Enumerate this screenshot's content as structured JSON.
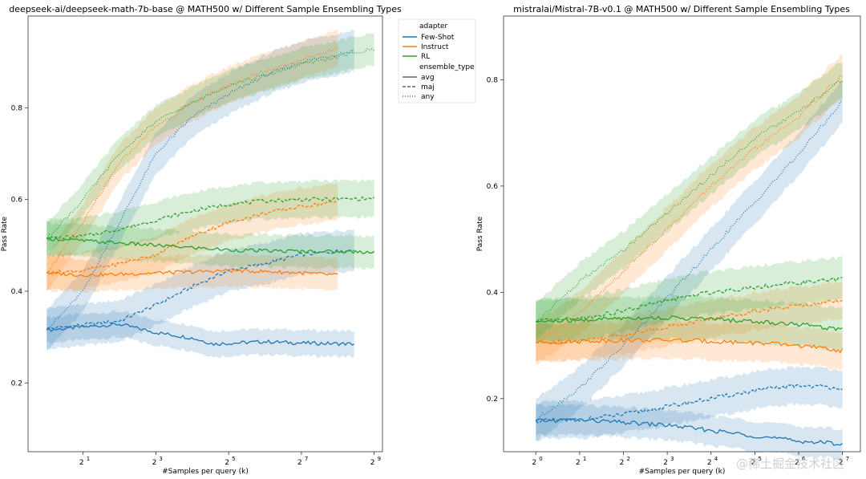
{
  "chart_data": [
    {
      "type": "line",
      "title": "deepseek-ai/deepseek-math-7b-base @ MATH500 w/ Different Sample Ensembling Types",
      "xlabel": "#Samples per query (k)",
      "ylabel": "Pass Rate",
      "xscale": "log2",
      "x_ticks": [
        {
          "value": 2,
          "base": "2",
          "exp": "1"
        },
        {
          "value": 8,
          "base": "2",
          "exp": "3"
        },
        {
          "value": 32,
          "base": "2",
          "exp": "5"
        },
        {
          "value": 128,
          "base": "2",
          "exp": "7"
        },
        {
          "value": 512,
          "base": "2",
          "exp": "9"
        }
      ],
      "y_ticks": [
        "0.2",
        "0.4",
        "0.6",
        "0.8"
      ],
      "xlim": [
        0.7,
        600
      ],
      "ylim": [
        0.05,
        1.0
      ],
      "grid": false,
      "series": [
        {
          "adapter": "Few-Shot",
          "ensemble_type": "avg",
          "x_start": 1,
          "x_end": 350,
          "points": [
            [
              1,
              0.315
            ],
            [
              2,
              0.322
            ],
            [
              4,
              0.328
            ],
            [
              8,
              0.31
            ],
            [
              16,
              0.298
            ],
            [
              24,
              0.285
            ],
            [
              64,
              0.29
            ],
            [
              128,
              0.287
            ],
            [
              350,
              0.285
            ]
          ],
          "band": 0.028
        },
        {
          "adapter": "Few-Shot",
          "ensemble_type": "maj",
          "x_start": 1,
          "x_end": 350,
          "points": [
            [
              1,
              0.318
            ],
            [
              4,
              0.335
            ],
            [
              8,
              0.37
            ],
            [
              16,
              0.41
            ],
            [
              32,
              0.445
            ],
            [
              64,
              0.46
            ],
            [
              128,
              0.48
            ],
            [
              350,
              0.49
            ]
          ],
          "band": 0.045
        },
        {
          "adapter": "Few-Shot",
          "ensemble_type": "any",
          "x_start": 1,
          "x_end": 350,
          "points": [
            [
              1,
              0.315
            ],
            [
              2,
              0.4
            ],
            [
              4,
              0.55
            ],
            [
              8,
              0.7
            ],
            [
              16,
              0.78
            ],
            [
              32,
              0.83
            ],
            [
              64,
              0.87
            ],
            [
              128,
              0.9
            ],
            [
              350,
              0.925
            ]
          ],
          "band": 0.045
        },
        {
          "adapter": "Instruct",
          "ensemble_type": "avg",
          "x_start": 1,
          "x_end": 256,
          "points": [
            [
              1,
              0.44
            ],
            [
              2,
              0.435
            ],
            [
              4,
              0.437
            ],
            [
              8,
              0.44
            ],
            [
              16,
              0.442
            ],
            [
              32,
              0.445
            ],
            [
              64,
              0.443
            ],
            [
              128,
              0.44
            ],
            [
              256,
              0.435
            ]
          ],
          "band": 0.035
        },
        {
          "adapter": "Instruct",
          "ensemble_type": "maj",
          "x_start": 1,
          "x_end": 256,
          "points": [
            [
              1,
              0.44
            ],
            [
              2,
              0.445
            ],
            [
              4,
              0.46
            ],
            [
              8,
              0.48
            ],
            [
              16,
              0.52
            ],
            [
              32,
              0.55
            ],
            [
              64,
              0.57
            ],
            [
              128,
              0.585
            ],
            [
              256,
              0.595
            ]
          ],
          "band": 0.04
        },
        {
          "adapter": "Instruct",
          "ensemble_type": "any",
          "x_start": 1,
          "x_end": 256,
          "points": [
            [
              1,
              0.44
            ],
            [
              2,
              0.55
            ],
            [
              4,
              0.68
            ],
            [
              8,
              0.76
            ],
            [
              16,
              0.81
            ],
            [
              32,
              0.85
            ],
            [
              64,
              0.88
            ],
            [
              128,
              0.905
            ],
            [
              256,
              0.93
            ]
          ],
          "band": 0.04
        },
        {
          "adapter": "RL",
          "ensemble_type": "avg",
          "x_start": 1,
          "x_end": 512,
          "points": [
            [
              1,
              0.515
            ],
            [
              2,
              0.51
            ],
            [
              4,
              0.505
            ],
            [
              8,
              0.5
            ],
            [
              16,
              0.495
            ],
            [
              32,
              0.49
            ],
            [
              64,
              0.488
            ],
            [
              128,
              0.487
            ],
            [
              512,
              0.486
            ]
          ],
          "band": 0.035
        },
        {
          "adapter": "RL",
          "ensemble_type": "maj",
          "x_start": 1,
          "x_end": 512,
          "points": [
            [
              1,
              0.515
            ],
            [
              2,
              0.52
            ],
            [
              4,
              0.535
            ],
            [
              8,
              0.555
            ],
            [
              16,
              0.575
            ],
            [
              32,
              0.59
            ],
            [
              64,
              0.597
            ],
            [
              128,
              0.6
            ],
            [
              512,
              0.602
            ]
          ],
          "band": 0.04
        },
        {
          "adapter": "RL",
          "ensemble_type": "any",
          "x_start": 1,
          "x_end": 512,
          "points": [
            [
              1,
              0.515
            ],
            [
              2,
              0.6
            ],
            [
              4,
              0.7
            ],
            [
              8,
              0.77
            ],
            [
              16,
              0.81
            ],
            [
              32,
              0.85
            ],
            [
              64,
              0.87
            ],
            [
              128,
              0.895
            ],
            [
              512,
              0.928
            ]
          ],
          "band": 0.035
        }
      ]
    },
    {
      "type": "line",
      "title": "mistralai/Mistral-7B-v0.1 @ MATH500 w/ Different Sample Ensembling Types",
      "xlabel": "#Samples per query (k)",
      "ylabel": "Pass Rate",
      "xscale": "log2",
      "x_ticks": [
        {
          "value": 1,
          "base": "2",
          "exp": "0"
        },
        {
          "value": 2,
          "base": "2",
          "exp": "1"
        },
        {
          "value": 4,
          "base": "2",
          "exp": "2"
        },
        {
          "value": 8,
          "base": "2",
          "exp": "3"
        },
        {
          "value": 16,
          "base": "2",
          "exp": "4"
        },
        {
          "value": 32,
          "base": "2",
          "exp": "5"
        },
        {
          "value": 64,
          "base": "2",
          "exp": "6"
        },
        {
          "value": 128,
          "base": "2",
          "exp": "7"
        }
      ],
      "y_ticks": [
        "0.2",
        "0.4",
        "0.6",
        "0.8"
      ],
      "xlim": [
        0.6,
        170
      ],
      "ylim": [
        0.1,
        0.92
      ],
      "grid": false,
      "series": [
        {
          "adapter": "Few-Shot",
          "ensemble_type": "avg",
          "x_start": 1,
          "x_end": 128,
          "points": [
            [
              1,
              0.158
            ],
            [
              2,
              0.16
            ],
            [
              4,
              0.155
            ],
            [
              8,
              0.15
            ],
            [
              16,
              0.14
            ],
            [
              32,
              0.13
            ],
            [
              64,
              0.12
            ],
            [
              128,
              0.115
            ]
          ],
          "band": 0.028
        },
        {
          "adapter": "Few-Shot",
          "ensemble_type": "maj",
          "x_start": 1,
          "x_end": 128,
          "points": [
            [
              1,
              0.158
            ],
            [
              2,
              0.16
            ],
            [
              4,
              0.17
            ],
            [
              8,
              0.185
            ],
            [
              16,
              0.2
            ],
            [
              32,
              0.215
            ],
            [
              64,
              0.225
            ],
            [
              128,
              0.22
            ]
          ],
          "band": 0.035
        },
        {
          "adapter": "Few-Shot",
          "ensemble_type": "any",
          "x_start": 1,
          "x_end": 128,
          "points": [
            [
              1,
              0.16
            ],
            [
              2,
              0.22
            ],
            [
              4,
              0.3
            ],
            [
              8,
              0.39
            ],
            [
              16,
              0.48
            ],
            [
              32,
              0.57
            ],
            [
              64,
              0.66
            ],
            [
              128,
              0.76
            ]
          ],
          "band": 0.04
        },
        {
          "adapter": "Instruct",
          "ensemble_type": "avg",
          "x_start": 1,
          "x_end": 128,
          "points": [
            [
              1,
              0.305
            ],
            [
              2,
              0.308
            ],
            [
              4,
              0.31
            ],
            [
              8,
              0.31
            ],
            [
              16,
              0.308
            ],
            [
              32,
              0.305
            ],
            [
              64,
              0.3
            ],
            [
              128,
              0.29
            ]
          ],
          "band": 0.035
        },
        {
          "adapter": "Instruct",
          "ensemble_type": "maj",
          "x_start": 1,
          "x_end": 128,
          "points": [
            [
              1,
              0.305
            ],
            [
              2,
              0.31
            ],
            [
              4,
              0.32
            ],
            [
              8,
              0.335
            ],
            [
              16,
              0.35
            ],
            [
              32,
              0.365
            ],
            [
              64,
              0.375
            ],
            [
              128,
              0.385
            ]
          ],
          "band": 0.035
        },
        {
          "adapter": "Instruct",
          "ensemble_type": "any",
          "x_start": 1,
          "x_end": 128,
          "points": [
            [
              1,
              0.305
            ],
            [
              2,
              0.36
            ],
            [
              4,
              0.44
            ],
            [
              8,
              0.52
            ],
            [
              16,
              0.6
            ],
            [
              32,
              0.67
            ],
            [
              64,
              0.73
            ],
            [
              128,
              0.81
            ]
          ],
          "band": 0.04
        },
        {
          "adapter": "RL",
          "ensemble_type": "avg",
          "x_start": 1,
          "x_end": 128,
          "points": [
            [
              1,
              0.345
            ],
            [
              2,
              0.347
            ],
            [
              4,
              0.352
            ],
            [
              8,
              0.352
            ],
            [
              16,
              0.35
            ],
            [
              32,
              0.345
            ],
            [
              64,
              0.34
            ],
            [
              128,
              0.33
            ]
          ],
          "band": 0.04
        },
        {
          "adapter": "RL",
          "ensemble_type": "maj",
          "x_start": 1,
          "x_end": 128,
          "points": [
            [
              1,
              0.345
            ],
            [
              2,
              0.35
            ],
            [
              4,
              0.365
            ],
            [
              8,
              0.385
            ],
            [
              16,
              0.4
            ],
            [
              32,
              0.41
            ],
            [
              64,
              0.418
            ],
            [
              128,
              0.425
            ]
          ],
          "band": 0.04
        },
        {
          "adapter": "RL",
          "ensemble_type": "any",
          "x_start": 1,
          "x_end": 128,
          "points": [
            [
              1,
              0.345
            ],
            [
              2,
              0.42
            ],
            [
              4,
              0.48
            ],
            [
              8,
              0.55
            ],
            [
              16,
              0.62
            ],
            [
              32,
              0.69
            ],
            [
              64,
              0.74
            ],
            [
              128,
              0.8
            ]
          ],
          "band": 0.035
        }
      ]
    }
  ],
  "legend": {
    "placement": "outside-right-of-first-plot",
    "adapter_header": "adapter",
    "adapters": [
      {
        "name": "Few-Shot",
        "color": "#1f77b4"
      },
      {
        "name": "Instruct",
        "color": "#ff7f0e"
      },
      {
        "name": "RL",
        "color": "#2ca02c"
      }
    ],
    "ensemble_header": "ensemble_type",
    "ensemble_types": [
      {
        "name": "avg",
        "dash": "solid"
      },
      {
        "name": "maj",
        "dash": "dashed"
      },
      {
        "name": "any",
        "dash": "dotted"
      }
    ]
  },
  "watermark": "@稀土掘金技术社区",
  "colors": {
    "Few-Shot": "#1f77b4",
    "Instruct": "#ff7f0e",
    "RL": "#2ca02c"
  }
}
